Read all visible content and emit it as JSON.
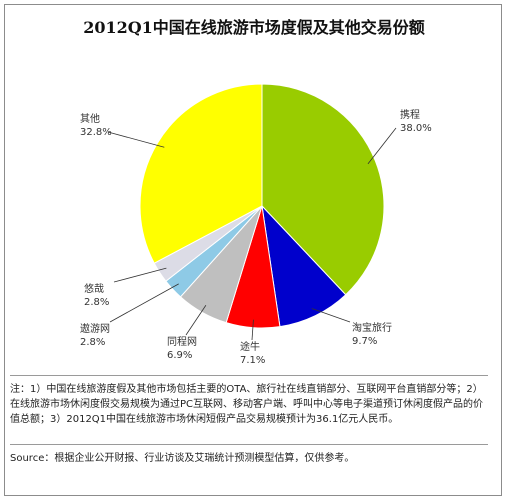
{
  "title": "2012Q1中国在线旅游市场度假及其他交易份额",
  "note": "注：1）中国在线旅游度假及其他市场包括主要的OTA、旅行社在线直销部分、互联网平台直销部分等；2）在线旅游市场休闲度假交易规模为通过PC互联网、移动客户端、呼叫中心等电子渠道预订休闲度假产品的价值总额；3）2012Q1中国在线旅游市场休闲短假产品交易规模预计为36.1亿元人民币。",
  "source": "Source：根据企业公开财报、行业访谈及艾瑞统计预测模型估算，仅供参考。",
  "chart_data": {
    "type": "pie",
    "title": "2012Q1中国在线旅游市场度假及其他交易份额",
    "slices": [
      {
        "name": "携程",
        "value": 38.0,
        "value_label": "38.0%",
        "color": "#99cc00"
      },
      {
        "name": "淘宝旅行",
        "value": 9.7,
        "value_label": "9.7%",
        "color": "#0000cc"
      },
      {
        "name": "途牛",
        "value": 7.1,
        "value_label": "7.1%",
        "color": "#ff0000"
      },
      {
        "name": "同程网",
        "value": 6.9,
        "value_label": "6.9%",
        "color": "#bfbfbf"
      },
      {
        "name": "遨游网",
        "value": 2.8,
        "value_label": "2.8%",
        "color": "#8ecae6"
      },
      {
        "name": "悠哉",
        "value": 2.8,
        "value_label": "2.8%",
        "color": "#dcdce6"
      },
      {
        "name": "其他",
        "value": 32.8,
        "value_label": "32.8%",
        "color": "#ffff00"
      }
    ]
  }
}
